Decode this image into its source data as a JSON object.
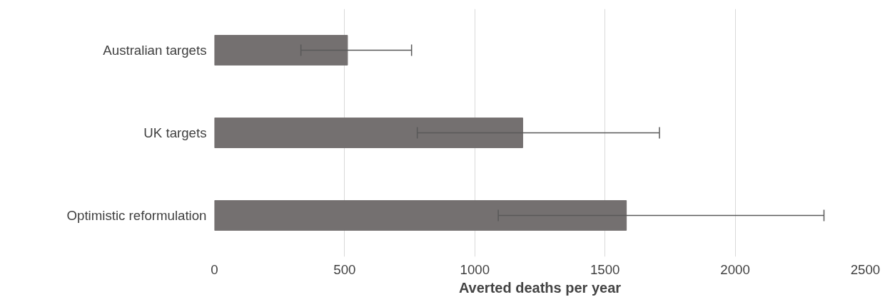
{
  "chart_data": {
    "type": "bar",
    "orientation": "horizontal",
    "xlabel": "Averted deaths per year",
    "categories": [
      "Australian targets",
      "UK targets",
      "Optimistic reformulation"
    ],
    "values": [
      511,
      1184,
      1582
    ],
    "errors": [
      [
        332,
        757
      ],
      [
        779,
        1709
      ],
      [
        1090,
        2341
      ]
    ],
    "color": "#747070",
    "xlim": [
      0,
      2500
    ],
    "xticks": [
      0,
      500,
      1000,
      1500,
      2000,
      2500
    ],
    "grid": "x"
  }
}
